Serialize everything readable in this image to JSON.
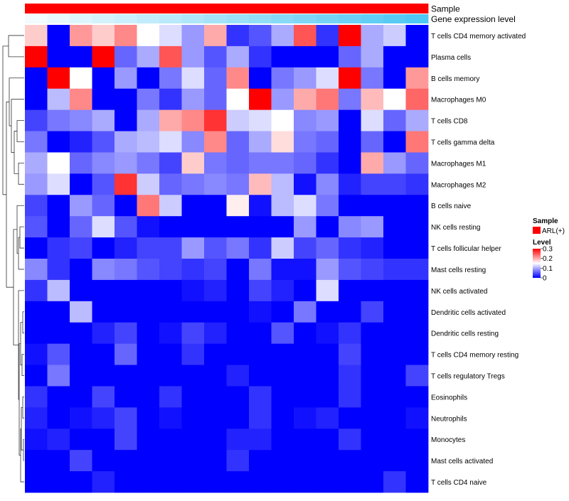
{
  "chart_data": {
    "type": "heatmap",
    "annotation_rows": [
      {
        "label": "Sample",
        "type": "categorical",
        "values": [
          "ARL(+)",
          "ARL(+)",
          "ARL(+)",
          "ARL(+)",
          "ARL(+)",
          "ARL(+)",
          "ARL(+)",
          "ARL(+)",
          "ARL(+)",
          "ARL(+)",
          "ARL(+)",
          "ARL(+)",
          "ARL(+)",
          "ARL(+)",
          "ARL(+)",
          "ARL(+)",
          "ARL(+)",
          "ARL(+)"
        ]
      },
      {
        "label": "Gene expression level",
        "type": "continuous",
        "values": [
          0.0,
          0.06,
          0.12,
          0.18,
          0.24,
          0.29,
          0.35,
          0.41,
          0.47,
          0.53,
          0.59,
          0.65,
          0.71,
          0.76,
          0.82,
          0.88,
          0.94,
          1.0
        ]
      }
    ],
    "rows": [
      "T cells CD4 memory activated",
      "Plasma cells",
      "B cells memory",
      "Macrophages M0",
      "T cells CD8",
      "T cells gamma delta",
      "Macrophages M1",
      "Macrophages M2",
      "B cells naive",
      "NK cells resting",
      "T cells follicular helper",
      "Mast cells resting",
      "NK cells activated",
      "Dendritic cells activated",
      "Dendritic cells resting",
      "T cells CD4 memory resting",
      "T cells regulatory  Tregs",
      "Eosinophils",
      "Neutrophils",
      "Monocytes",
      "Mast cells activated",
      "T cells CD4 naive"
    ],
    "columns": 18,
    "values": [
      [
        0.18,
        0.0,
        0.21,
        0.18,
        0.22,
        0.15,
        0.13,
        0.09,
        0.2,
        0.03,
        0.05,
        0.1,
        0.25,
        0.03,
        0.3,
        0.1,
        0.12,
        0.0
      ],
      [
        0.3,
        0.0,
        0.0,
        0.3,
        0.06,
        0.1,
        0.25,
        0.09,
        0.05,
        0.1,
        0.03,
        0.0,
        0.0,
        0.0,
        0.06,
        0.1,
        0.0,
        0.0
      ],
      [
        0.0,
        0.3,
        0.15,
        0.0,
        0.09,
        0.0,
        0.07,
        0.13,
        0.06,
        0.22,
        0.0,
        0.07,
        0.09,
        0.13,
        0.3,
        0.07,
        0.0,
        0.21
      ],
      [
        0.0,
        0.11,
        0.22,
        0.0,
        0.0,
        0.07,
        0.03,
        0.09,
        0.06,
        0.15,
        0.3,
        0.09,
        0.2,
        0.23,
        0.07,
        0.19,
        0.15,
        0.24
      ],
      [
        0.04,
        0.07,
        0.08,
        0.1,
        0.0,
        0.1,
        0.2,
        0.22,
        0.27,
        0.12,
        0.13,
        0.15,
        0.08,
        0.09,
        0.0,
        0.13,
        0.06,
        0.1
      ],
      [
        0.07,
        0.0,
        0.02,
        0.05,
        0.1,
        0.11,
        0.13,
        0.08,
        0.22,
        0.06,
        0.1,
        0.17,
        0.07,
        0.06,
        0.0,
        0.06,
        0.0,
        0.23
      ],
      [
        0.1,
        0.15,
        0.06,
        0.08,
        0.09,
        0.07,
        0.04,
        0.18,
        0.07,
        0.06,
        0.07,
        0.07,
        0.06,
        0.03,
        0.0,
        0.2,
        0.09,
        0.06
      ],
      [
        0.09,
        0.13,
        0.0,
        0.05,
        0.27,
        0.12,
        0.06,
        0.07,
        0.08,
        0.07,
        0.19,
        0.11,
        0.01,
        0.08,
        0.02,
        0.04,
        0.04,
        0.03
      ],
      [
        0.04,
        0.0,
        0.09,
        0.06,
        0.0,
        0.23,
        0.12,
        0.0,
        0.0,
        0.16,
        0.01,
        0.11,
        0.13,
        0.07,
        0.0,
        0.0,
        0.0,
        0.0
      ],
      [
        0.05,
        0.0,
        0.06,
        0.13,
        0.05,
        0.01,
        0.0,
        0.0,
        0.0,
        0.0,
        0.0,
        0.0,
        0.09,
        0.0,
        0.08,
        0.09,
        0.0,
        0.0
      ],
      [
        0.0,
        0.03,
        0.04,
        0.0,
        0.02,
        0.04,
        0.04,
        0.09,
        0.05,
        0.07,
        0.03,
        0.12,
        0.04,
        0.06,
        0.03,
        0.02,
        0.0,
        0.0
      ],
      [
        0.08,
        0.03,
        0.0,
        0.08,
        0.07,
        0.05,
        0.04,
        0.03,
        0.04,
        0.0,
        0.07,
        0.01,
        0.01,
        0.09,
        0.05,
        0.04,
        0.03,
        0.03
      ],
      [
        0.03,
        0.11,
        0.0,
        0.0,
        0.0,
        0.0,
        0.0,
        0.01,
        0.02,
        0.0,
        0.04,
        0.02,
        0.0,
        0.13,
        0.0,
        0.0,
        0.0,
        0.0
      ],
      [
        0.0,
        0.0,
        0.11,
        0.0,
        0.0,
        0.0,
        0.0,
        0.0,
        0.0,
        0.0,
        0.01,
        0.0,
        0.07,
        0.0,
        0.0,
        0.04,
        0.0,
        0.0
      ],
      [
        0.0,
        0.0,
        0.0,
        0.02,
        0.04,
        0.0,
        0.01,
        0.04,
        0.02,
        0.0,
        0.0,
        0.05,
        0.0,
        0.01,
        0.03,
        0.0,
        0.0,
        0.0
      ],
      [
        0.01,
        0.05,
        0.0,
        0.0,
        0.06,
        0.0,
        0.0,
        0.03,
        0.0,
        0.0,
        0.0,
        0.0,
        0.0,
        0.0,
        0.04,
        0.0,
        0.0,
        0.0
      ],
      [
        0.0,
        0.07,
        0.0,
        0.0,
        0.0,
        0.0,
        0.0,
        0.0,
        0.0,
        0.02,
        0.0,
        0.0,
        0.0,
        0.0,
        0.03,
        0.0,
        0.0,
        0.04
      ],
      [
        0.03,
        0.0,
        0.0,
        0.04,
        0.0,
        0.0,
        0.03,
        0.0,
        0.0,
        0.0,
        0.03,
        0.0,
        0.0,
        0.0,
        0.03,
        0.0,
        0.0,
        0.0
      ],
      [
        0.02,
        0.0,
        0.01,
        0.02,
        0.04,
        0.0,
        0.01,
        0.0,
        0.0,
        0.0,
        0.03,
        0.0,
        0.01,
        0.02,
        0.0,
        0.0,
        0.0,
        0.01
      ],
      [
        0.01,
        0.02,
        0.0,
        0.0,
        0.04,
        0.0,
        0.0,
        0.0,
        0.0,
        0.02,
        0.02,
        0.0,
        0.0,
        0.0,
        0.03,
        0.0,
        0.0,
        0.0
      ],
      [
        0.0,
        0.0,
        0.04,
        0.0,
        0.0,
        0.0,
        0.0,
        0.0,
        0.0,
        0.03,
        0.0,
        0.0,
        0.0,
        0.0,
        0.0,
        0.0,
        0.0,
        0.0
      ],
      [
        0.0,
        0.0,
        0.0,
        0.02,
        0.0,
        0.0,
        0.0,
        0.0,
        0.0,
        0.0,
        0.0,
        0.0,
        0.0,
        0.0,
        0.0,
        0.0,
        0.03,
        0.0
      ]
    ],
    "color_scale": {
      "min": 0,
      "max": 0.3,
      "low": "#0000ff",
      "mid": "#ffffff",
      "high": "#ff0000",
      "midpoint": 0.15
    },
    "legends": {
      "sample": {
        "title": "Sample",
        "entries": [
          {
            "label": "ARL(+)",
            "color": "#ff0000"
          }
        ]
      },
      "level": {
        "title": "Level",
        "ticks": [
          "0.3",
          "0.2",
          "0.1",
          "0"
        ]
      }
    },
    "annotation_colors": {
      "sample": "#ff0000",
      "gradient_low": "#f2fbfe",
      "gradient_high": "#4ec8f4"
    },
    "dendrogram": true
  }
}
